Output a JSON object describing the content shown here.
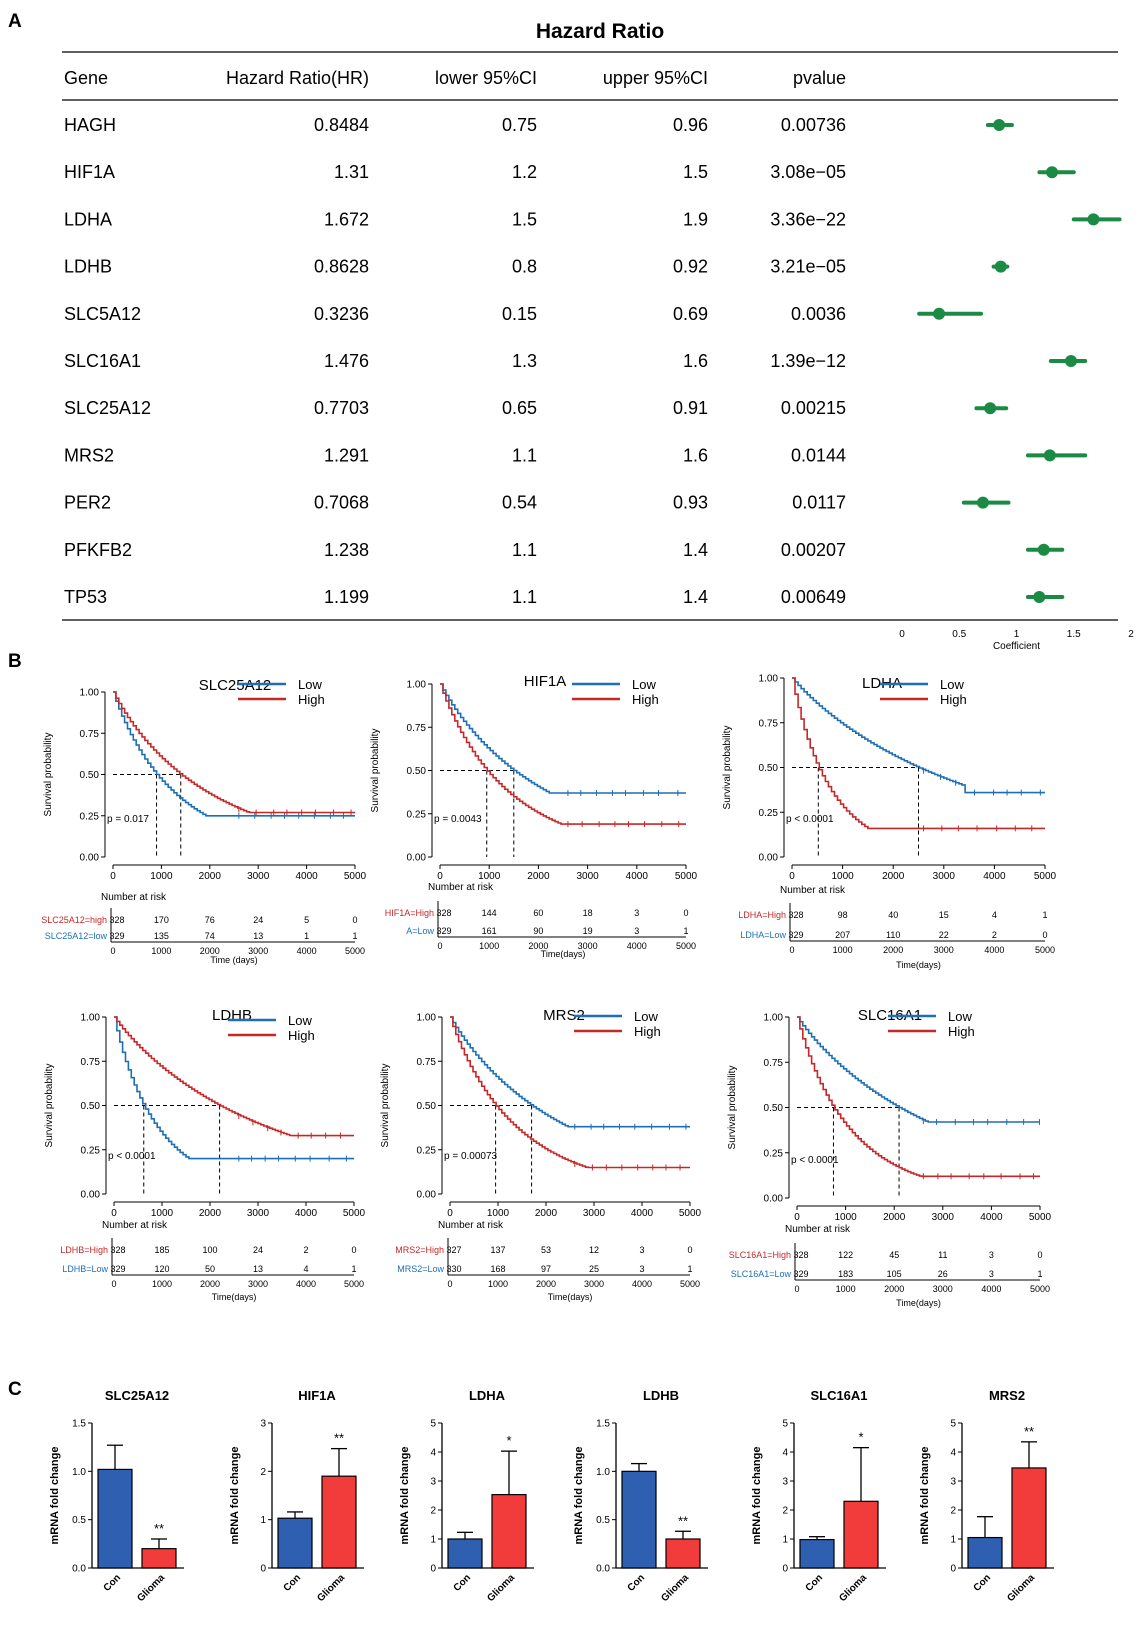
{
  "panels": {
    "a": "A",
    "b": "B",
    "c": "C"
  },
  "colors": {
    "forest": "#1a8a44",
    "low": "#1f6fb5",
    "high": "#c62828",
    "con_bar": "#2e5fb0",
    "glioma_bar": "#f23b3b"
  },
  "forest": {
    "title": "Hazard Ratio",
    "headers": [
      "Gene",
      "Hazard Ratio(HR)",
      "lower 95%CI",
      "upper 95%CI",
      "pvalue"
    ],
    "rows": [
      {
        "gene": "HAGH",
        "hr": "0.8484",
        "lower": "0.75",
        "upper": "0.96",
        "p": "0.00736"
      },
      {
        "gene": "HIF1A",
        "hr": "1.31",
        "lower": "1.2",
        "upper": "1.5",
        "p": "3.08e−05"
      },
      {
        "gene": "LDHA",
        "hr": "1.672",
        "lower": "1.5",
        "upper": "1.9",
        "p": "3.36e−22"
      },
      {
        "gene": "LDHB",
        "hr": "0.8628",
        "lower": "0.8",
        "upper": "0.92",
        "p": "3.21e−05"
      },
      {
        "gene": "SLC5A12",
        "hr": "0.3236",
        "lower": "0.15",
        "upper": "0.69",
        "p": "0.0036"
      },
      {
        "gene": "SLC16A1",
        "hr": "1.476",
        "lower": "1.3",
        "upper": "1.6",
        "p": "1.39e−12"
      },
      {
        "gene": "SLC25A12",
        "hr": "0.7703",
        "lower": "0.65",
        "upper": "0.91",
        "p": "0.00215"
      },
      {
        "gene": "MRS2",
        "hr": "1.291",
        "lower": "1.1",
        "upper": "1.6",
        "p": "0.0144"
      },
      {
        "gene": "PER2",
        "hr": "0.7068",
        "lower": "0.54",
        "upper": "0.93",
        "p": "0.0117"
      },
      {
        "gene": "PFKFB2",
        "hr": "1.238",
        "lower": "1.1",
        "upper": "1.4",
        "p": "0.00207"
      },
      {
        "gene": "TP53",
        "hr": "1.199",
        "lower": "1.1",
        "upper": "1.4",
        "p": "0.00649"
      }
    ],
    "axis_ticks": [
      "0",
      "0.5",
      "1",
      "1.5",
      "2"
    ],
    "axis_label": "Coefficient",
    "xlim": [
      0,
      2
    ]
  },
  "chart_data": [
    {
      "type": "table",
      "title": "Hazard Ratio",
      "columns": [
        "Gene",
        "Hazard Ratio(HR)",
        "lower 95%CI",
        "upper 95%CI",
        "pvalue"
      ],
      "genes": [
        "HAGH",
        "HIF1A",
        "LDHA",
        "LDHB",
        "SLC5A12",
        "SLC16A1",
        "SLC25A12",
        "MRS2",
        "PER2",
        "PFKFB2",
        "TP53"
      ],
      "hr": [
        0.8484,
        1.31,
        1.672,
        0.8628,
        0.3236,
        1.476,
        0.7703,
        1.291,
        0.7068,
        1.238,
        1.199
      ],
      "lower": [
        0.75,
        1.2,
        1.5,
        0.8,
        0.15,
        1.3,
        0.65,
        1.1,
        0.54,
        1.1,
        1.1
      ],
      "upper": [
        0.96,
        1.5,
        1.9,
        0.92,
        0.69,
        1.6,
        0.91,
        1.6,
        0.93,
        1.4,
        1.4
      ],
      "xlabel": "Coefficient",
      "xlim": [
        0,
        2
      ]
    },
    {
      "type": "line",
      "km": [
        {
          "title": "SLC25A12",
          "legend": [
            "Low",
            "High"
          ],
          "pvalue": "p = 0.017",
          "ylabel": "Survival probability",
          "xlabel": "Time (days)",
          "risk_title": "Number at risk",
          "risk_rows": [
            {
              "label": "SLC25A12=high",
              "values": [
                "328",
                "170",
                "76",
                "24",
                "5",
                "0"
              ]
            },
            {
              "label": "SLC25A12=low",
              "values": [
                "329",
                "135",
                "74",
                "13",
                "1",
                "1"
              ]
            }
          ],
          "median_low": 900,
          "median_high": 1400,
          "low_end": 0.25,
          "high_end": 0.27
        },
        {
          "title": "HIF1A",
          "legend": [
            "Low",
            "High"
          ],
          "pvalue": "p = 0.0043",
          "ylabel": "Survival probability",
          "xlabel": "Time(days)",
          "risk_title": "Number at risk",
          "risk_rows": [
            {
              "label": "HIF1A=High",
              "values": [
                "328",
                "144",
                "60",
                "18",
                "3",
                "0"
              ]
            },
            {
              "label": "A=Low",
              "values": [
                "329",
                "161",
                "90",
                "19",
                "3",
                "1"
              ]
            }
          ],
          "median_low": 1500,
          "median_high": 950,
          "low_end": 0.37,
          "high_end": 0.19
        },
        {
          "title": "LDHA",
          "legend": [
            "Low",
            "High"
          ],
          "pvalue": "p < 0.0001",
          "ylabel": "Survival probability",
          "xlabel": "Time(days)",
          "risk_title": "Number at risk",
          "risk_rows": [
            {
              "label": "LDHA=High",
              "values": [
                "328",
                "98",
                "40",
                "15",
                "4",
                "1"
              ]
            },
            {
              "label": "LDHA=Low",
              "values": [
                "329",
                "207",
                "110",
                "22",
                "2",
                "0"
              ]
            }
          ],
          "median_low": 2500,
          "median_high": 520,
          "low_end": 0.36,
          "high_end": 0.16
        },
        {
          "title": "LDHB",
          "legend": [
            "Low",
            "High"
          ],
          "pvalue": "p < 0.0001",
          "ylabel": "Survival probability",
          "xlabel": "Time(days)",
          "risk_title": "Number at risk",
          "risk_rows": [
            {
              "label": "LDHB=High",
              "values": [
                "328",
                "185",
                "100",
                "24",
                "2",
                "0"
              ]
            },
            {
              "label": "LDHB=Low",
              "values": [
                "329",
                "120",
                "50",
                "13",
                "4",
                "1"
              ]
            }
          ],
          "median_low": 620,
          "median_high": 2200,
          "low_end": 0.2,
          "high_end": 0.33
        },
        {
          "title": "MRS2",
          "legend": [
            "Low",
            "High"
          ],
          "pvalue": "p = 0.00073",
          "ylabel": "Survival probability",
          "xlabel": "Time(days)",
          "risk_title": "Number at risk",
          "risk_rows": [
            {
              "label": "MRS2=High",
              "values": [
                "327",
                "137",
                "53",
                "12",
                "3",
                "0"
              ]
            },
            {
              "label": "MRS2=Low",
              "values": [
                "330",
                "168",
                "97",
                "25",
                "3",
                "1"
              ]
            }
          ],
          "median_low": 1700,
          "median_high": 950,
          "low_end": 0.38,
          "high_end": 0.15
        },
        {
          "title": "SLC16A1",
          "legend": [
            "Low",
            "High"
          ],
          "pvalue": "p < 0.0001",
          "ylabel": "Survival probability",
          "xlabel": "Time(days)",
          "risk_title": "Number at risk",
          "risk_rows": [
            {
              "label": "SLC16A1=High",
              "values": [
                "328",
                "122",
                "45",
                "11",
                "3",
                "0"
              ]
            },
            {
              "label": "SLC16A1=Low",
              "values": [
                "329",
                "183",
                "105",
                "26",
                "3",
                "1"
              ]
            }
          ],
          "median_low": 2100,
          "median_high": 750,
          "low_end": 0.42,
          "high_end": 0.12
        }
      ],
      "x_ticks": [
        "0",
        "1000",
        "2000",
        "3000",
        "4000",
        "5000"
      ],
      "y_ticks": [
        "0.00",
        "0.25",
        "0.50",
        "0.75",
        "1.00"
      ],
      "xlim": [
        0,
        5000
      ],
      "ylim": [
        0,
        1
      ]
    },
    {
      "type": "bar",
      "categories": [
        "Con",
        "Glioma"
      ],
      "ylabel": "mRNA fold change",
      "plots": [
        {
          "title": "SLC25A12",
          "values": [
            1.02,
            0.2
          ],
          "err": [
            0.25,
            0.1
          ],
          "sig": "**",
          "ymax": 1.5,
          "ticks": [
            "0.0",
            "0.5",
            "1.0",
            "1.5"
          ]
        },
        {
          "title": "HIF1A",
          "values": [
            1.03,
            1.9
          ],
          "err": [
            0.13,
            0.57
          ],
          "sig": "**",
          "ymax": 3,
          "ticks": [
            "0",
            "1",
            "2",
            "3"
          ]
        },
        {
          "title": "LDHA",
          "values": [
            1.0,
            2.53
          ],
          "err": [
            0.23,
            1.5
          ],
          "sig": "*",
          "ymax": 5,
          "ticks": [
            "0",
            "1",
            "2",
            "3",
            "4",
            "5"
          ]
        },
        {
          "title": "LDHB",
          "values": [
            1.0,
            0.3
          ],
          "err": [
            0.08,
            0.08
          ],
          "sig": "**",
          "ymax": 1.5,
          "ticks": [
            "0.0",
            "0.5",
            "1.0",
            "1.5"
          ]
        },
        {
          "title": "SLC16A1",
          "values": [
            0.98,
            2.3
          ],
          "err": [
            0.1,
            1.85
          ],
          "sig": "*",
          "ymax": 5,
          "ticks": [
            "0",
            "1",
            "2",
            "3",
            "4",
            "5"
          ]
        },
        {
          "title": "MRS2",
          "values": [
            1.05,
            3.45
          ],
          "err": [
            0.72,
            0.9
          ],
          "sig": "**",
          "ymax": 5,
          "ticks": [
            "0",
            "1",
            "2",
            "3",
            "4",
            "5"
          ]
        }
      ]
    }
  ]
}
